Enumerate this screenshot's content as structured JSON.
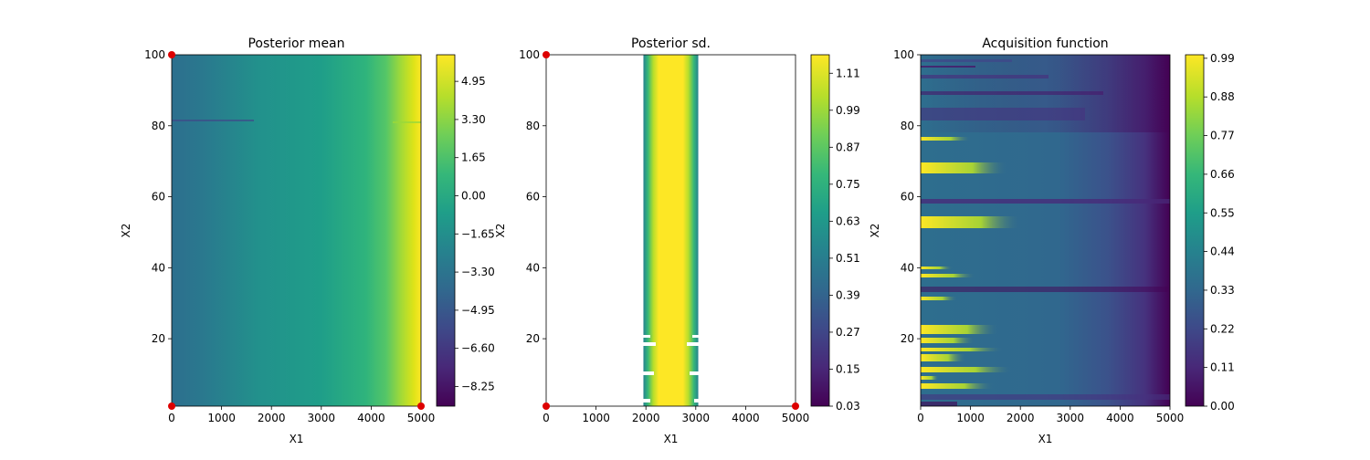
{
  "chart_data": [
    {
      "type": "heatmap",
      "title": "Posterior mean",
      "xlabel": "X1",
      "ylabel": "X2",
      "xlim": [
        0,
        5000
      ],
      "ylim": [
        1,
        100
      ],
      "xticks": [
        "0",
        "1000",
        "2000",
        "3000",
        "4000",
        "5000"
      ],
      "yticks": [
        "20",
        "40",
        "60",
        "80",
        "100"
      ],
      "colorbar": {
        "range": [
          -9.1,
          6.1
        ],
        "ticks": [
          "−8.25",
          "−6.60",
          "−4.95",
          "−3.30",
          "−1.65",
          "0.00",
          "1.65",
          "3.30",
          "4.95"
        ]
      },
      "points": [
        [
          0,
          1
        ],
        [
          5000,
          1
        ],
        [
          0,
          100
        ]
      ]
    },
    {
      "type": "heatmap",
      "title": "Posterior sd.",
      "xlabel": "X1",
      "ylabel": "X2",
      "xlim": [
        0,
        5000
      ],
      "ylim": [
        1,
        100
      ],
      "xticks": [
        "0",
        "1000",
        "2000",
        "3000",
        "4000",
        "5000"
      ],
      "yticks": [
        "20",
        "40",
        "60",
        "80",
        "100"
      ],
      "colorbar": {
        "range": [
          0.03,
          1.17
        ],
        "ticks": [
          "0.03",
          "0.15",
          "0.27",
          "0.39",
          "0.51",
          "0.63",
          "0.75",
          "0.87",
          "0.99",
          "1.11"
        ]
      },
      "band_x": [
        1950,
        3050
      ],
      "points": [
        [
          0,
          1
        ],
        [
          5000,
          1
        ],
        [
          0,
          100
        ]
      ]
    },
    {
      "type": "heatmap",
      "title": "Acquisition function",
      "xlabel": "X1",
      "ylabel": "X2",
      "xlim": [
        0,
        5000
      ],
      "ylim": [
        1,
        100
      ],
      "xticks": [
        "0",
        "1000",
        "2000",
        "3000",
        "4000",
        "5000"
      ],
      "yticks": [
        "20",
        "40",
        "60",
        "80",
        "100"
      ],
      "colorbar": {
        "range": [
          0.0,
          1.0
        ],
        "ticks": [
          "0.00",
          "0.11",
          "0.22",
          "0.33",
          "0.44",
          "0.55",
          "0.66",
          "0.77",
          "0.88",
          "0.99"
        ]
      }
    }
  ],
  "colors": {
    "viridis": [
      "#440154",
      "#482878",
      "#3e4989",
      "#31688e",
      "#26828e",
      "#1f9e89",
      "#35b779",
      "#6ece58",
      "#b5de2b",
      "#fde725"
    ],
    "marker": "#dd0000"
  }
}
